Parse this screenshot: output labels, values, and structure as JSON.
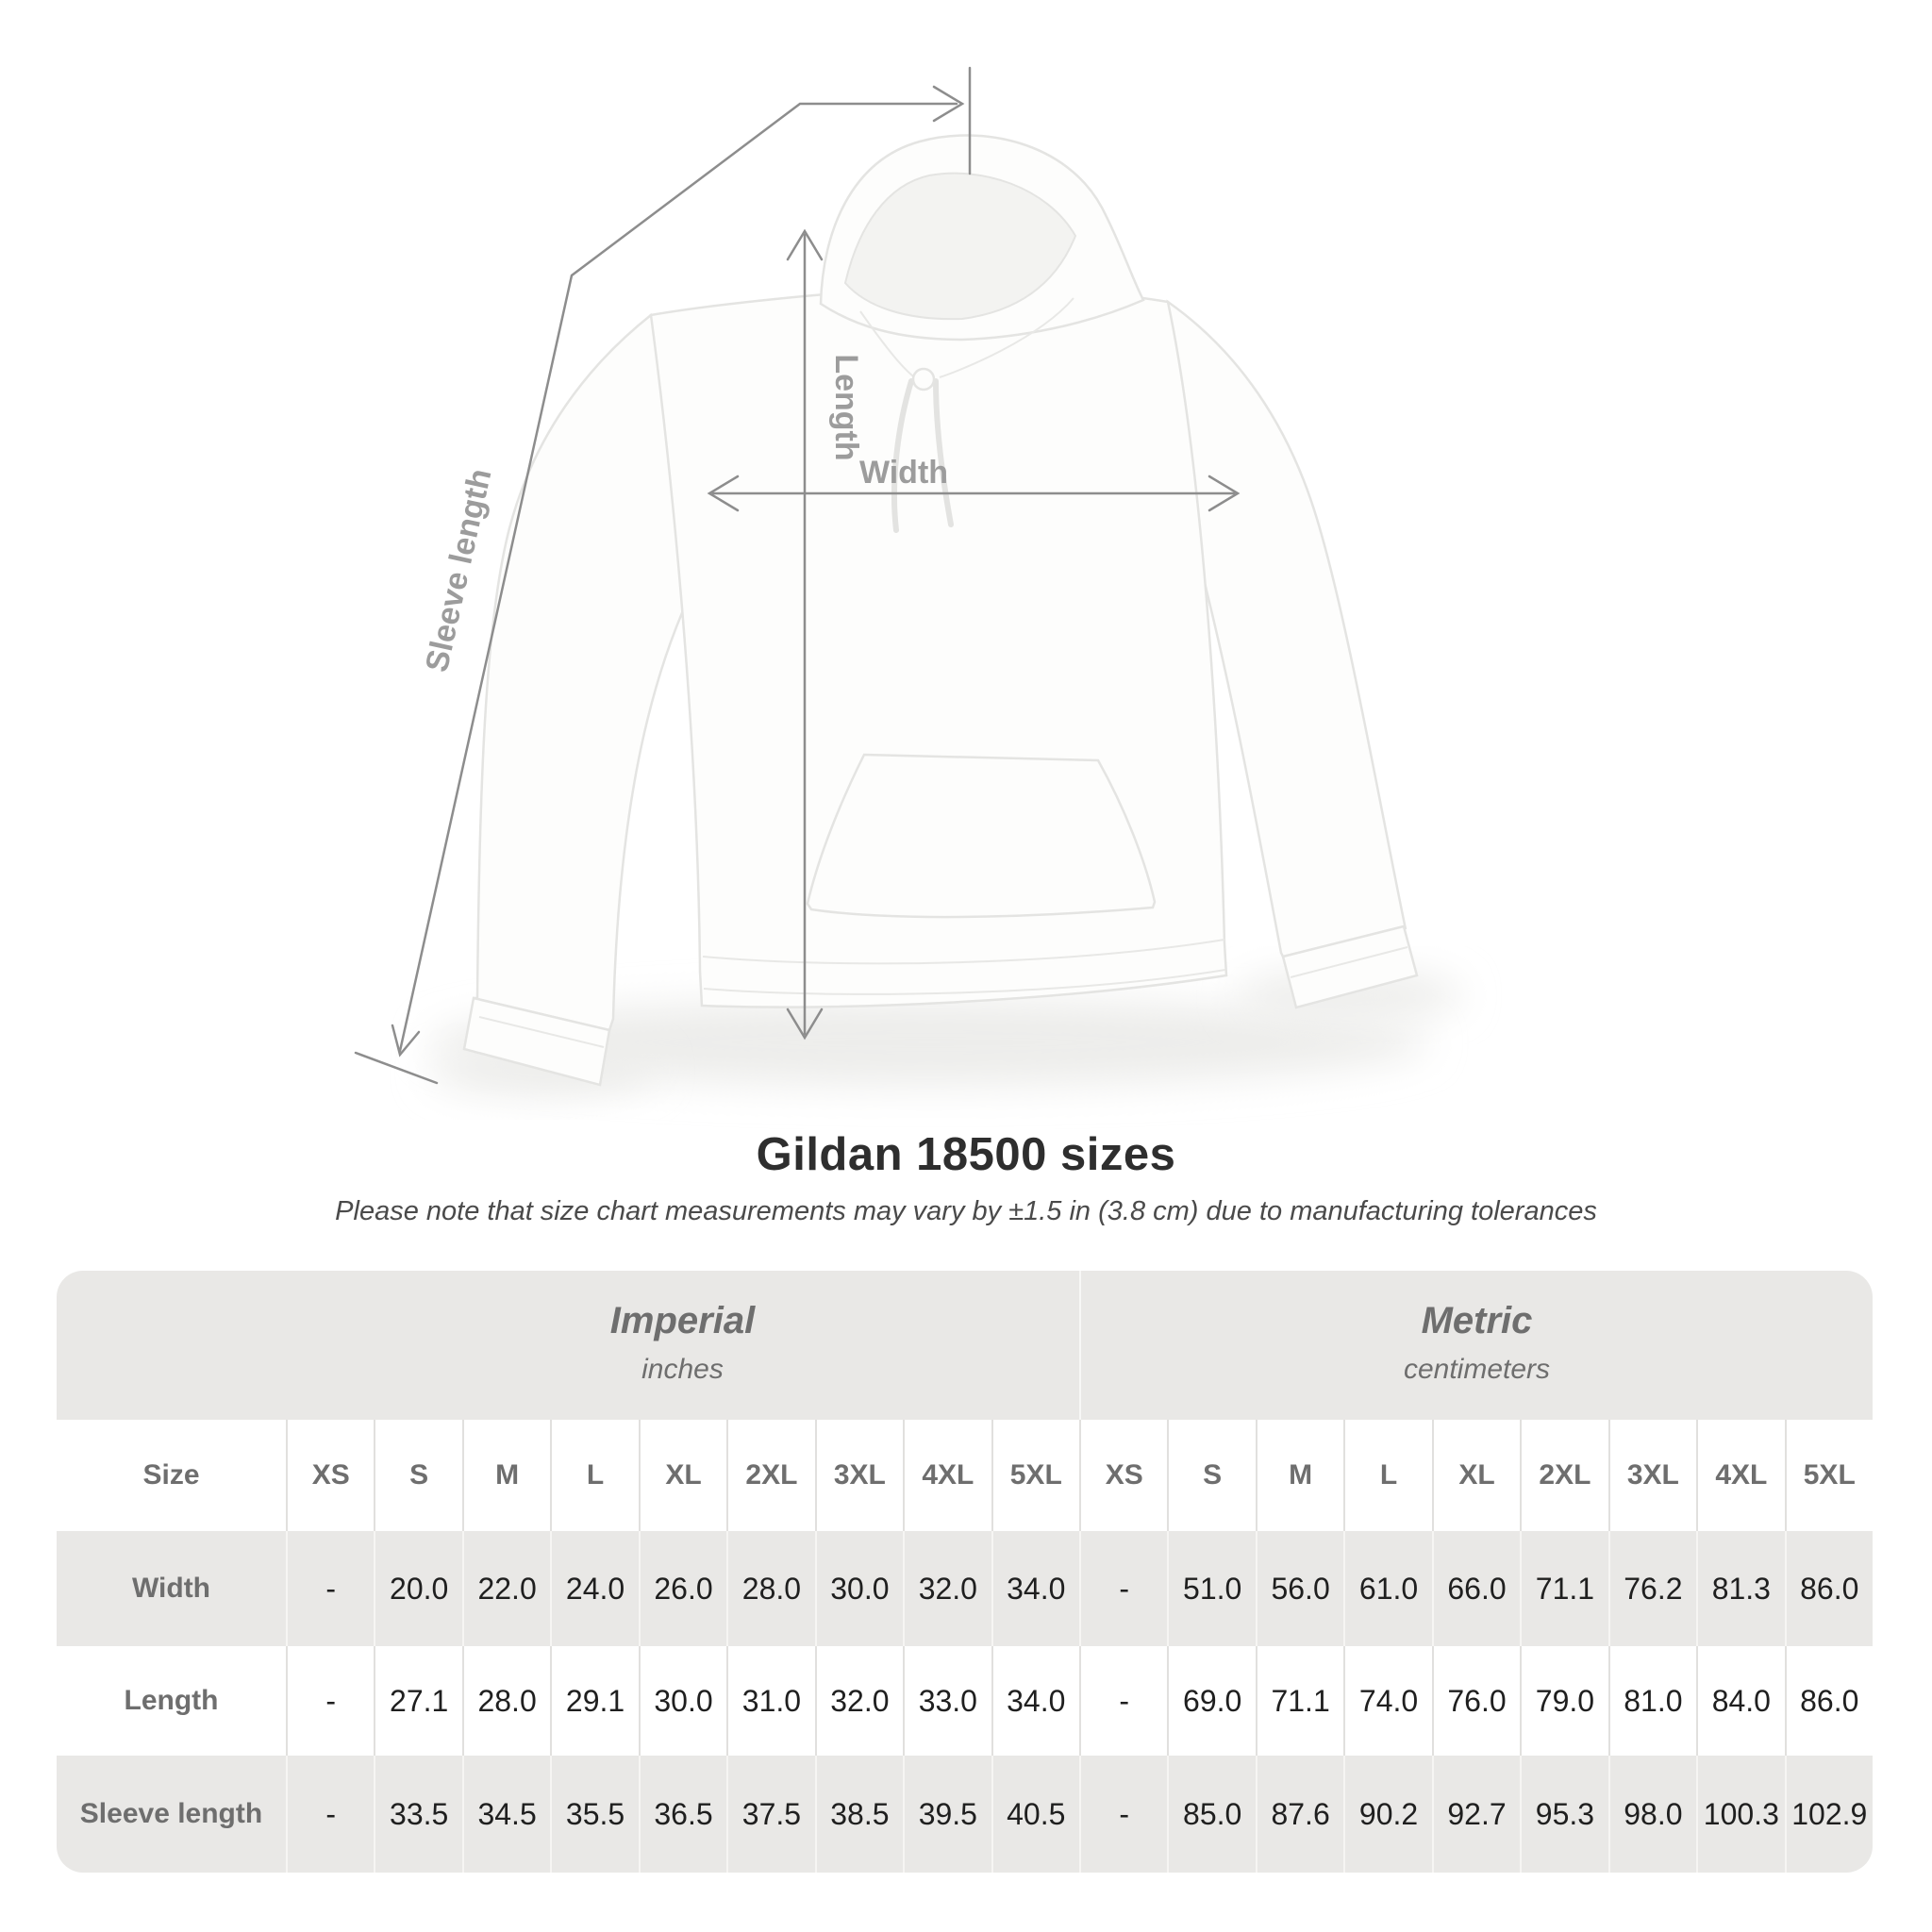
{
  "theme": {
    "line": "#8d8d8d",
    "measure-label": "#9c9c9c",
    "title-text": "#2e2e2e",
    "subtitle-text": "#4a4a4a",
    "band": "#e9e8e6",
    "stripe": "#e9e8e6",
    "sep-light": "#f6f5f3",
    "sep-dark": "#e1e0de",
    "header-text": "#6e6e6e",
    "value-text": "#1f1f1f",
    "garment-stroke": "#e4e4e2",
    "garment-fill": "#fdfdfc"
  },
  "diagram": {
    "labels": {
      "length": "Length",
      "width": "Width",
      "sleeve": "Sleeve length"
    }
  },
  "title": "Gildan 18500 sizes",
  "subtitle": "Please note that size chart measurements may vary by ±1.5 in (3.8 cm) due to manufacturing tolerances",
  "table": {
    "corner_label": "Size",
    "groups": [
      {
        "name": "Imperial",
        "unit": "inches"
      },
      {
        "name": "Metric",
        "unit": "centimeters"
      }
    ],
    "sizes": [
      "XS",
      "S",
      "M",
      "L",
      "XL",
      "2XL",
      "3XL",
      "4XL",
      "5XL"
    ],
    "rows": [
      {
        "label": "Width",
        "imperial": [
          "-",
          "20.0",
          "22.0",
          "24.0",
          "26.0",
          "28.0",
          "30.0",
          "32.0",
          "34.0"
        ],
        "metric": [
          "-",
          "51.0",
          "56.0",
          "61.0",
          "66.0",
          "71.1",
          "76.2",
          "81.3",
          "86.0"
        ]
      },
      {
        "label": "Length",
        "imperial": [
          "-",
          "27.1",
          "28.0",
          "29.1",
          "30.0",
          "31.0",
          "32.0",
          "33.0",
          "34.0"
        ],
        "metric": [
          "-",
          "69.0",
          "71.1",
          "74.0",
          "76.0",
          "79.0",
          "81.0",
          "84.0",
          "86.0"
        ]
      },
      {
        "label": "Sleeve length",
        "imperial": [
          "-",
          "33.5",
          "34.5",
          "35.5",
          "36.5",
          "37.5",
          "38.5",
          "39.5",
          "40.5"
        ],
        "metric": [
          "-",
          "85.0",
          "87.6",
          "90.2",
          "92.7",
          "95.3",
          "98.0",
          "100.3",
          "102.9"
        ]
      }
    ]
  }
}
